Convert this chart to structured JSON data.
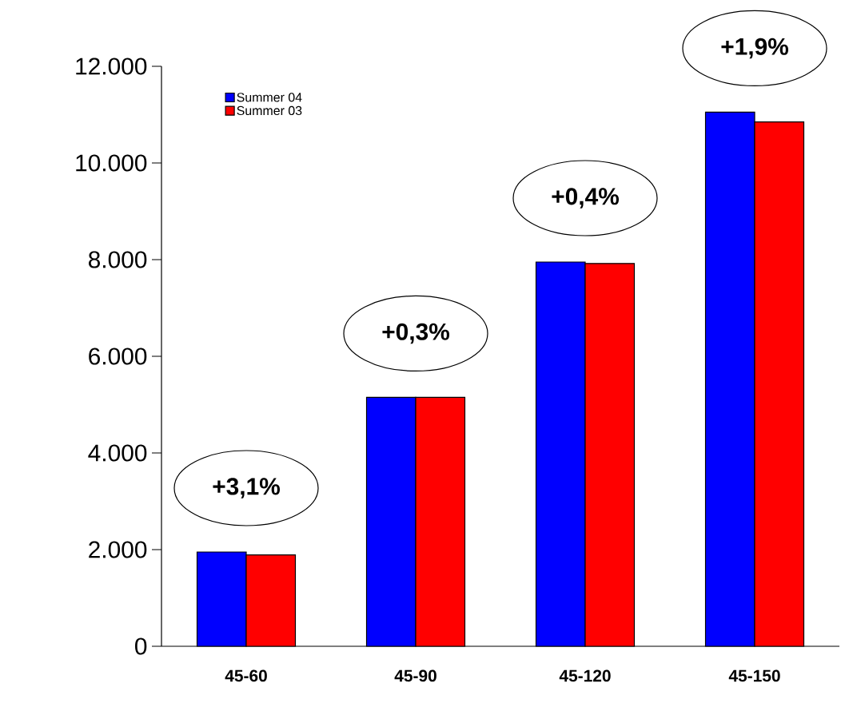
{
  "chart_data": {
    "type": "bar",
    "categories": [
      "45-60",
      "45-90",
      "45-120",
      "45-150"
    ],
    "series": [
      {
        "name": "Summer 04",
        "color": "#0000ff",
        "values": [
          1950,
          5150,
          7950,
          11050
        ]
      },
      {
        "name": "Summer 03",
        "color": "#ff0000",
        "values": [
          1890,
          5150,
          7920,
          10850
        ]
      }
    ],
    "ylim": [
      0,
      12000
    ],
    "yticks": [
      0,
      {
        "value": 2000,
        "label": "2.000"
      },
      {
        "value": 4000,
        "label": "4.000"
      },
      {
        "value": 6000,
        "label": "6.000"
      },
      {
        "value": 8000,
        "label": "8.000"
      },
      {
        "value": 10000,
        "label": "10.000"
      },
      {
        "value": 12000,
        "label": "12.000"
      }
    ],
    "legend": "top left",
    "grid": false,
    "annotations": [
      {
        "text": "+3,1%",
        "x": "45-60",
        "y": 1950
      },
      {
        "text": "+0,3%",
        "x": "45-90",
        "y": 5150
      },
      {
        "text": "+0,4%",
        "x": "45-120",
        "y": 7950
      },
      {
        "text": "+1,9%",
        "x": "45-150",
        "y": 11050
      }
    ]
  }
}
